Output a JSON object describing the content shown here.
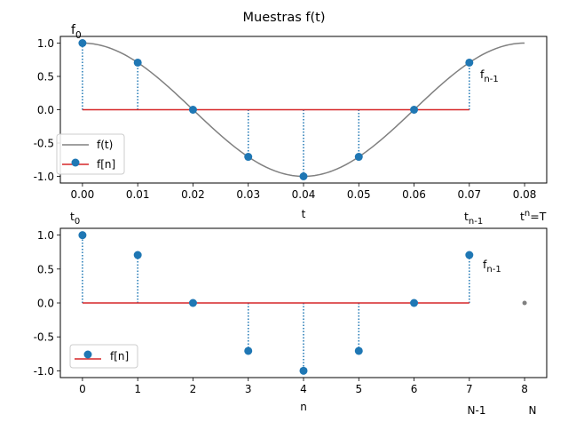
{
  "title": "Muestras f(t)",
  "colors": {
    "curve": "#808080",
    "marker": "#1f77b4",
    "baseline": "#d62728",
    "extra_point": "#808080",
    "frame": "#000000"
  },
  "chart_data": [
    {
      "type": "line",
      "subtype": "stem",
      "xlabel": "t",
      "xlim": [
        -0.004,
        0.084
      ],
      "ylim": [
        -1.1,
        1.1
      ],
      "xticks": [
        "0.00",
        "0.01",
        "0.02",
        "0.03",
        "0.04",
        "0.05",
        "0.06",
        "0.07",
        "0.08"
      ],
      "yticks": [
        "1.0",
        "0.5",
        "0.0",
        "-0.5",
        "-1.0"
      ],
      "legend": {
        "placement": "lower-left",
        "curve_label": "f(t)",
        "stem_label": "f[n]"
      },
      "curve": {
        "function": "cos(2*pi*t/0.08)",
        "t_range": [
          0,
          0.08
        ],
        "period": 0.08
      },
      "samples": {
        "x": [
          0.0,
          0.01,
          0.02,
          0.03,
          0.04,
          0.05,
          0.06,
          0.07
        ],
        "y": [
          1.0,
          0.707,
          0.0,
          -0.707,
          -1.0,
          -0.707,
          0.0,
          0.707
        ]
      },
      "annotations": {
        "top_first": {
          "base": "f",
          "sub": "0"
        },
        "top_last": {
          "base": "f",
          "sub": "n-1"
        },
        "bottom_t0": {
          "base": "t",
          "sub": "0"
        },
        "bottom_tn1": {
          "base": "t",
          "sub": "n-1"
        },
        "bottom_tn_base": "t",
        "bottom_tn_sub": "n",
        "bottom_tn_tail": "=T"
      },
      "grid": false
    },
    {
      "type": "line",
      "subtype": "stem",
      "xlabel": "n",
      "xlim": [
        -0.4,
        8.4
      ],
      "ylim": [
        -1.1,
        1.1
      ],
      "xticks": [
        "0",
        "1",
        "2",
        "3",
        "4",
        "5",
        "6",
        "7",
        "8"
      ],
      "yticks": [
        "1.0",
        "0.5",
        "0.0",
        "-0.5",
        "-1.0"
      ],
      "legend": {
        "placement": "lower-left",
        "stem_label": "f[n]"
      },
      "samples": {
        "x": [
          0,
          1,
          2,
          3,
          4,
          5,
          6,
          7
        ],
        "y": [
          1.0,
          0.707,
          0.0,
          -0.707,
          -1.0,
          -0.707,
          0.0,
          0.707
        ]
      },
      "extra_point": {
        "x": 8,
        "y": 0.0
      },
      "annotations": {
        "last": {
          "base": "f",
          "sub": "n-1"
        },
        "bottom_n1": "N-1",
        "bottom_N": "N"
      },
      "grid": false
    }
  ]
}
